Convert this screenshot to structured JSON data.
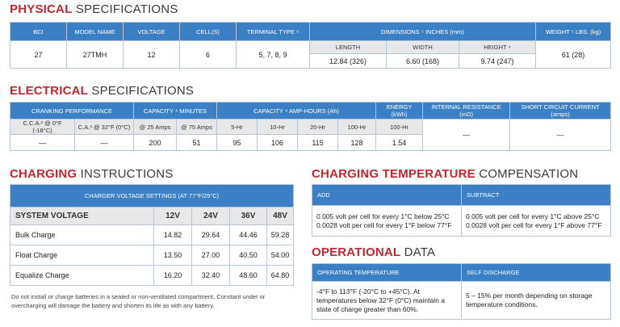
{
  "physical": {
    "title_bold": "PHYSICAL",
    "title_rest": "SPECIFICATIONS",
    "headers": [
      "BCI",
      "MODEL NAME",
      "VOLTAGE",
      "CELL(S)",
      "TERMINAL TYPE ⁶",
      "DIMENSIONS ⁵ INCHES (mm)",
      "WEIGHT ⁵ LBS. (kg)"
    ],
    "dimension_headers": [
      "LENGTH",
      "WIDTH",
      "HEIGHT ⁴"
    ],
    "values": [
      "27",
      "27TMH",
      "12",
      "6",
      "5, 7, 8, 9",
      "12.84 (326)",
      "6.60 (168)",
      "9.74 (247)",
      "61 (28)"
    ]
  },
  "electrical": {
    "title_bold": "ELECTRICAL",
    "title_rest": "SPECIFICATIONS",
    "group_headers": [
      "CRANKING PERFORMANCE",
      "CAPACITY ⁴ MINUTES",
      "CAPACITY ⁴ AMP-HOURS (Ah)",
      "ENERGY (kWh)",
      "INTERNAL RESISTANCE (mΩ)",
      "SHORT CIRCUIT CURRENT (amps)"
    ],
    "sub_headers": [
      "C.C.A.² @ 0°F (-18°C)",
      "C.A.³ @ 32°F (0°C)",
      "@ 25 Amps",
      "@ 75 Amps",
      "5-Hr",
      "10-Hr",
      "20-Hr",
      "100-Hr",
      "100-Hr"
    ],
    "values": [
      "—",
      "—",
      "200",
      "51",
      "95",
      "106",
      "115",
      "128",
      "1.54",
      "—",
      "—"
    ]
  },
  "charging": {
    "title_bold": "CHARGING",
    "title_rest": "INSTRUCTIONS",
    "header": "CHARGER VOLTAGE SETTINGS (AT 77°F/25°C)",
    "column_headers": [
      "SYSTEM VOLTAGE",
      "12V",
      "24V",
      "36V",
      "48V"
    ],
    "rows": [
      [
        "Bulk Charge",
        "14.82",
        "29.64",
        "44.46",
        "59.28"
      ],
      [
        "Float Charge",
        "13.50",
        "27.00",
        "40.50",
        "54.00"
      ],
      [
        "Equalize Charge",
        "16.20",
        "32.40",
        "48.60",
        "64.80"
      ]
    ],
    "note": "Do not install or charge batteries in a sealed or non-ventilated compartment. Constant under or overcharging will damage the battery and shorten its life as with any battery."
  },
  "temperature_compensation": {
    "title_bold": "CHARGING TEMPERATURE",
    "title_rest": "COMPENSATION",
    "headers": [
      "ADD",
      "SUBTRACT"
    ],
    "cells": [
      [
        "0.005 volt per cell for every 1°C below 25°C",
        "0.0028 volt per cell for every 1°F below 77°F"
      ],
      [
        "0.005 volt per cell for every 1°C above 25°C",
        "0.0028 volt per cell for every 1°F above 77°F"
      ]
    ]
  },
  "operational": {
    "title_bold": "OPERATIONAL",
    "title_rest": "DATA",
    "headers": [
      "OPERATING TEMPERATURE",
      "SELF DISCHARGE"
    ],
    "cells": [
      "-4°F to 113°F (-20°C to +45°C). At temperatures below 32°F (0°C) maintain a state of charge greater than 60%.",
      "5 – 15% per month depending on storage temperature conditions."
    ]
  }
}
